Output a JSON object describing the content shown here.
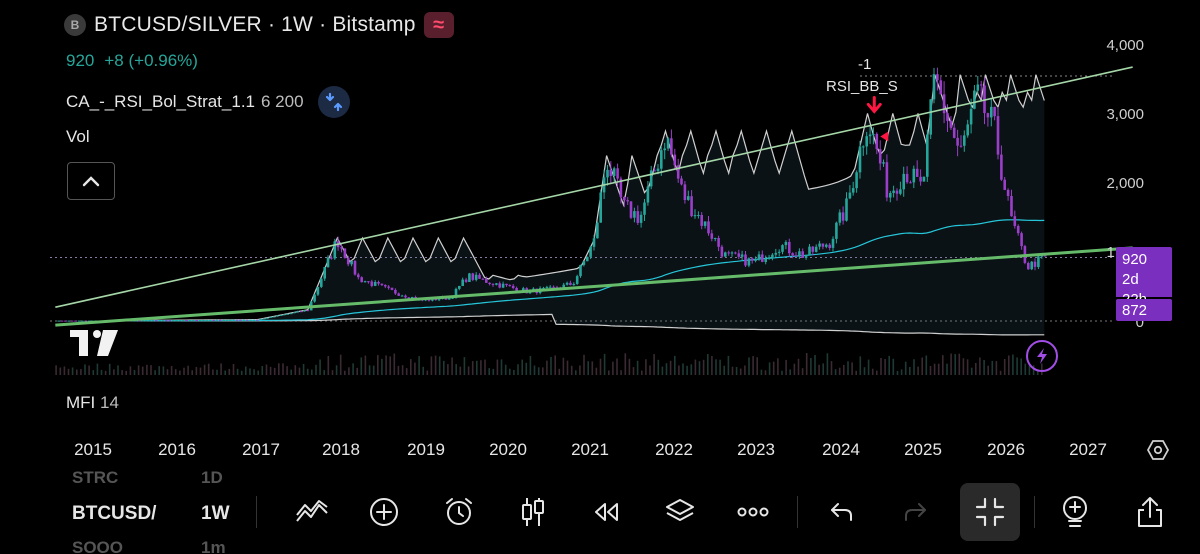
{
  "header": {
    "symbol_badge": "B",
    "title": "BTCUSD/SILVER · 1W · Bitstamp",
    "wave_badge": "≈"
  },
  "price": {
    "last": "920",
    "change": "+8 (+0.96%)"
  },
  "indicator": {
    "name": "CA_-_RSI_Bol_Strat_1.1",
    "params": "6 200",
    "icon": "arrows-in-icon"
  },
  "volume": {
    "label": "Vol"
  },
  "mfi": {
    "label": "MFI",
    "params": "14"
  },
  "signal": {
    "count": "-1",
    "name": "RSI_BB_S"
  },
  "price_tags": {
    "current": "920",
    "countdown": "2d 22h",
    "low": "872"
  },
  "colors": {
    "up": "#26a69a",
    "down": "#9b3ec9",
    "trendline": "#66bb6a",
    "upper_line": "#a5d6a7",
    "band": "#d0d0d0",
    "sma": "#26c6da",
    "tag": "#7b2fbe",
    "signal": "#ff1744"
  },
  "toolbar": {
    "ghost_top_left": "STRC",
    "ghost_top_right": "1D",
    "symbol": "BTCUSD/",
    "timeframe": "1W",
    "ghost_bottom_left": "SOOO",
    "ghost_bottom_right": "1m",
    "icons": [
      "indicators-icon",
      "add-icon",
      "alarm-icon",
      "candles-icon",
      "replay-icon",
      "layers-icon",
      "more-icon",
      "undo-icon",
      "redo-icon",
      "fullscreen-exit-icon",
      "bulb-icon",
      "share-icon"
    ]
  },
  "chart_data": {
    "type": "line",
    "title": "",
    "xlabel": "",
    "ylabel": "",
    "x": [
      2015.0,
      2016.0,
      2017.0,
      2017.6,
      2017.95,
      2018.2,
      2018.6,
      2018.95,
      2019.3,
      2019.5,
      2019.9,
      2020.2,
      2020.5,
      2020.75,
      2021.0,
      2021.15,
      2021.35,
      2021.55,
      2021.85,
      2022.05,
      2022.4,
      2022.55,
      2022.9,
      2023.2,
      2023.5,
      2023.8,
      2024.0,
      2024.25,
      2024.5,
      2024.7,
      2024.9,
      2025.05,
      2025.35,
      2025.55,
      2025.75,
      2025.95,
      2026.15,
      2026.35
    ],
    "series": [
      {
        "values": [
          6,
          12,
          20,
          160,
          1180,
          620,
          430,
          300,
          340,
          650,
          520,
          430,
          460,
          540,
          1150,
          2350,
          1650,
          1500,
          2700,
          1850,
          1250,
          950,
          850,
          1100,
          950,
          1150,
          1650,
          2950,
          1850,
          2200,
          1900,
          3500,
          2400,
          3250,
          2800,
          1500,
          780,
          920
        ]
      }
    ],
    "xlim": [
      2014.6,
      2027.5
    ],
    "ylim": [
      0,
      4000
    ],
    "y_ticks": [
      "0",
      "1,000",
      "2,000",
      "3,000",
      "4,000"
    ],
    "x_ticks": [
      "2015",
      "2016",
      "2017",
      "2018",
      "2019",
      "2020",
      "2021",
      "2022",
      "2023",
      "2024",
      "2025",
      "2026",
      "2027"
    ],
    "reference_lines": {
      "upper_trend": [
        [
          2014.6,
          200
        ],
        [
          2027.4,
          3680
        ]
      ],
      "lower_trend": [
        [
          2014.6,
          -60
        ],
        [
          2027.4,
          1060
        ]
      ],
      "current_price": 920,
      "high_mark": 3550
    },
    "grid": false
  }
}
